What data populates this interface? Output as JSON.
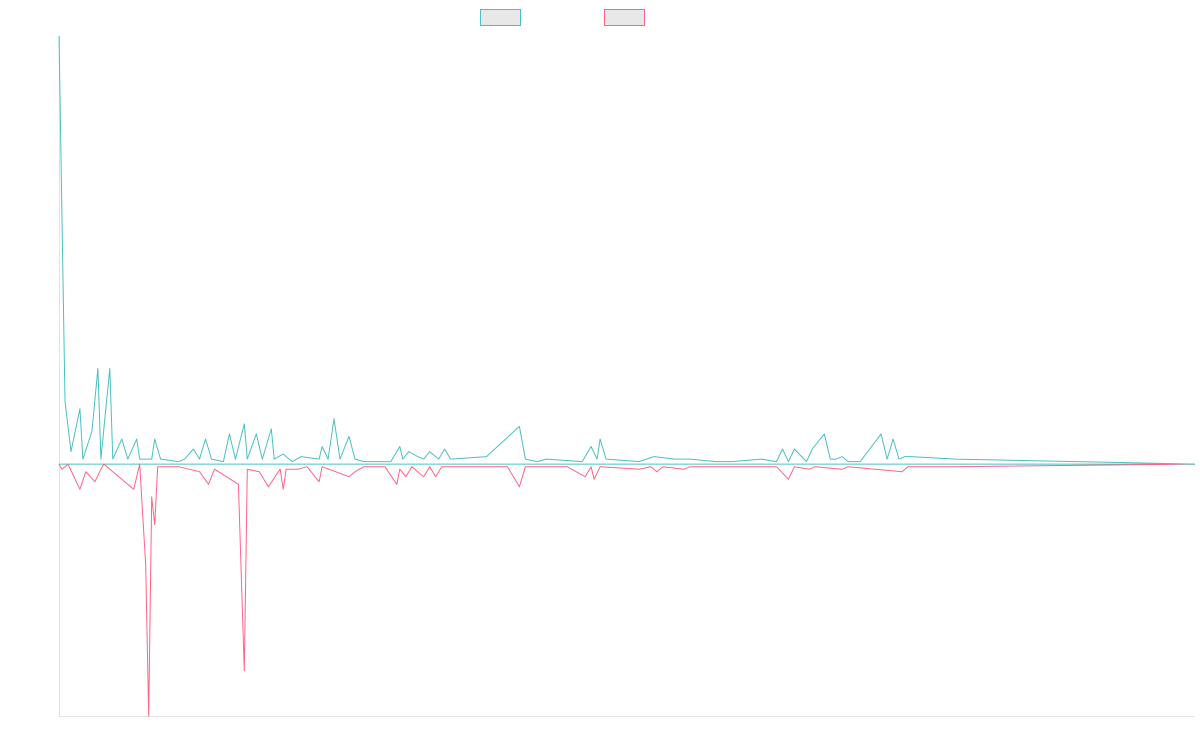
{
  "chart_data": {
    "type": "line",
    "title": "",
    "xlabel": "",
    "ylabel": "",
    "grid": false,
    "legend_position": "top-center",
    "ylim": [
      -100,
      170
    ],
    "xlim": [
      0,
      380
    ],
    "series": [
      {
        "legend_label": "",
        "color": "#4bc0c0",
        "legend_fill": "#e8e8e8",
        "points": [
          [
            0,
            170
          ],
          [
            2,
            25
          ],
          [
            4,
            5
          ],
          [
            7,
            22
          ],
          [
            8,
            2
          ],
          [
            11,
            13
          ],
          [
            13,
            38
          ],
          [
            14,
            2
          ],
          [
            17,
            38
          ],
          [
            18,
            2
          ],
          [
            21,
            10
          ],
          [
            23,
            2
          ],
          [
            26,
            10
          ],
          [
            27,
            2
          ],
          [
            31,
            2
          ],
          [
            32,
            10
          ],
          [
            34,
            2
          ],
          [
            40,
            1
          ],
          [
            42,
            2
          ],
          [
            45,
            6
          ],
          [
            47,
            2
          ],
          [
            49,
            10
          ],
          [
            51,
            2
          ],
          [
            55,
            1
          ],
          [
            57,
            12
          ],
          [
            59,
            2
          ],
          [
            62,
            16
          ],
          [
            63,
            2
          ],
          [
            66,
            12
          ],
          [
            68,
            2
          ],
          [
            71,
            14
          ],
          [
            72,
            2
          ],
          [
            75,
            4
          ],
          [
            78,
            1
          ],
          [
            81,
            3
          ],
          [
            87,
            2
          ],
          [
            88,
            7
          ],
          [
            90,
            2
          ],
          [
            92,
            18
          ],
          [
            94,
            2
          ],
          [
            97,
            11
          ],
          [
            99,
            2
          ],
          [
            102,
            1
          ],
          [
            107,
            1
          ],
          [
            111,
            1
          ],
          [
            114,
            7
          ],
          [
            115,
            2
          ],
          [
            117,
            5
          ],
          [
            120,
            3
          ],
          [
            122,
            2
          ],
          [
            124,
            5
          ],
          [
            127,
            2
          ],
          [
            129,
            6
          ],
          [
            131,
            2
          ],
          [
            143,
            3
          ],
          [
            154,
            15
          ],
          [
            156,
            2
          ],
          [
            160,
            1
          ],
          [
            163,
            2
          ],
          [
            175,
            1
          ],
          [
            178,
            7
          ],
          [
            180,
            2
          ],
          [
            181,
            10
          ],
          [
            183,
            2
          ],
          [
            194,
            1
          ],
          [
            199,
            3
          ],
          [
            206,
            2
          ],
          [
            211,
            2
          ],
          [
            220,
            1
          ],
          [
            225,
            1
          ],
          [
            235,
            2
          ],
          [
            240,
            1
          ],
          [
            242,
            6
          ],
          [
            244,
            1
          ],
          [
            246,
            6
          ],
          [
            250,
            1
          ],
          [
            252,
            6
          ],
          [
            256,
            12
          ],
          [
            258,
            2
          ],
          [
            260,
            2
          ],
          [
            262,
            3
          ],
          [
            264,
            1
          ],
          [
            266,
            1
          ],
          [
            268,
            1
          ],
          [
            275,
            12
          ],
          [
            277,
            2
          ],
          [
            279,
            10
          ],
          [
            281,
            2
          ],
          [
            283,
            3
          ],
          [
            285,
            3
          ],
          [
            300,
            2
          ]
        ]
      },
      {
        "legend_label": "",
        "color": "#ff6384",
        "legend_fill": "#e8e8e8",
        "points": [
          [
            0,
            0
          ],
          [
            1,
            -2
          ],
          [
            3,
            0
          ],
          [
            7,
            -10
          ],
          [
            9,
            -3
          ],
          [
            12,
            -7
          ],
          [
            14,
            -2
          ],
          [
            15,
            0
          ],
          [
            21,
            -6
          ],
          [
            25,
            -10
          ],
          [
            27,
            0
          ],
          [
            29,
            -40
          ],
          [
            30,
            -100
          ],
          [
            31,
            -13
          ],
          [
            32,
            -24
          ],
          [
            33,
            -1
          ],
          [
            40,
            -1
          ],
          [
            47,
            -3
          ],
          [
            50,
            -8
          ],
          [
            52,
            -2
          ],
          [
            60,
            -8
          ],
          [
            62,
            -82
          ],
          [
            63,
            -2
          ],
          [
            67,
            -3
          ],
          [
            70,
            -9
          ],
          [
            74,
            -2
          ],
          [
            75,
            -10
          ],
          [
            76,
            -2
          ],
          [
            80,
            -2
          ],
          [
            83,
            -1
          ],
          [
            87,
            -7
          ],
          [
            88,
            -1
          ],
          [
            97,
            -5
          ],
          [
            99,
            -3
          ],
          [
            102,
            -1
          ],
          [
            104,
            -1
          ],
          [
            109,
            -1
          ],
          [
            113,
            -8
          ],
          [
            114,
            -2
          ],
          [
            116,
            -5
          ],
          [
            118,
            -1
          ],
          [
            122,
            -5
          ],
          [
            124,
            -1
          ],
          [
            126,
            -5
          ],
          [
            128,
            -1
          ],
          [
            150,
            -1
          ],
          [
            154,
            -9
          ],
          [
            156,
            -1
          ],
          [
            160,
            -1
          ],
          [
            170,
            -1
          ],
          [
            176,
            -5
          ],
          [
            178,
            -1
          ],
          [
            179,
            -6
          ],
          [
            181,
            -1
          ],
          [
            194,
            -2
          ],
          [
            198,
            -1
          ],
          [
            200,
            -3
          ],
          [
            202,
            -1
          ],
          [
            209,
            -2
          ],
          [
            211,
            -1
          ],
          [
            220,
            -1
          ],
          [
            240,
            -1
          ],
          [
            244,
            -6
          ],
          [
            246,
            -1
          ],
          [
            251,
            -2
          ],
          [
            253,
            -1
          ],
          [
            262,
            -2
          ],
          [
            264,
            -1
          ],
          [
            282,
            -3
          ],
          [
            284,
            -1
          ],
          [
            300,
            -1
          ]
        ]
      }
    ]
  }
}
